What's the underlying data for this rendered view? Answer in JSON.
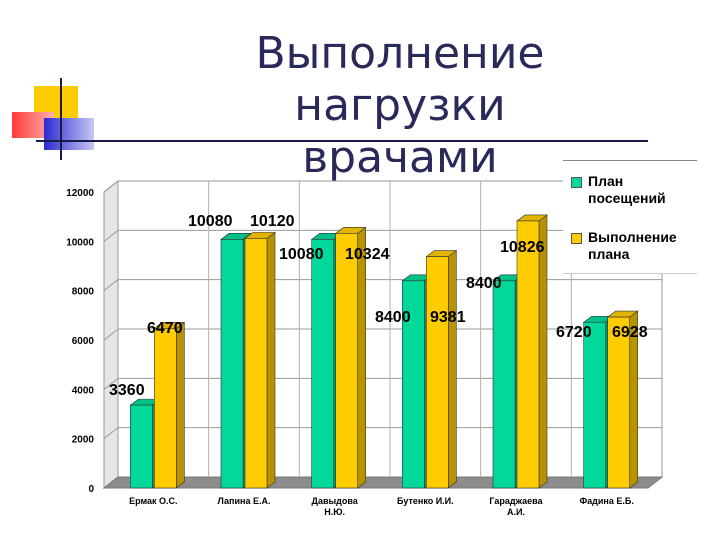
{
  "slide": {
    "title_line1": "Выполнение нагрузки",
    "title_line2": "врачами"
  },
  "colors": {
    "plan": "#00d99a",
    "done": "#ffcc00",
    "title": "#2a2a5a",
    "accent_yellow": "#ffcc00",
    "accent_red": "#ff4d4d",
    "accent_blue": "#3333cc"
  },
  "legend": {
    "items": [
      {
        "label": "План посещений",
        "color": "#00d99a"
      },
      {
        "label": "Выполнение плана",
        "color": "#ffcc00"
      }
    ]
  },
  "chart_data": {
    "type": "bar",
    "title": "",
    "xlabel": "",
    "ylabel": "",
    "ylim": [
      0,
      12000
    ],
    "yticks": [
      0,
      2000,
      4000,
      6000,
      8000,
      10000,
      12000
    ],
    "grid": true,
    "legend_position": "top-right",
    "categories": [
      "Ермак О.С.",
      "Лапина Е.А.",
      "Давыдова Н.Ю.",
      "Бутенко И.И.",
      "Гараджаева А.И.",
      "Фадина Е.Б."
    ],
    "category_lines": [
      [
        "Ермак О.С."
      ],
      [
        "Лапина Е.А."
      ],
      [
        "Давыдова",
        "Н.Ю."
      ],
      [
        "Бутенко И.И."
      ],
      [
        "Гараджаева",
        "А.И."
      ],
      [
        "Фадина Е.Б."
      ]
    ],
    "series": [
      {
        "name": "План посещений",
        "values": [
          3360,
          10080,
          10080,
          8400,
          8400,
          6720
        ]
      },
      {
        "name": "Выполнение плана",
        "values": [
          6470,
          10120,
          10324,
          9381,
          10826,
          6928
        ]
      }
    ]
  }
}
